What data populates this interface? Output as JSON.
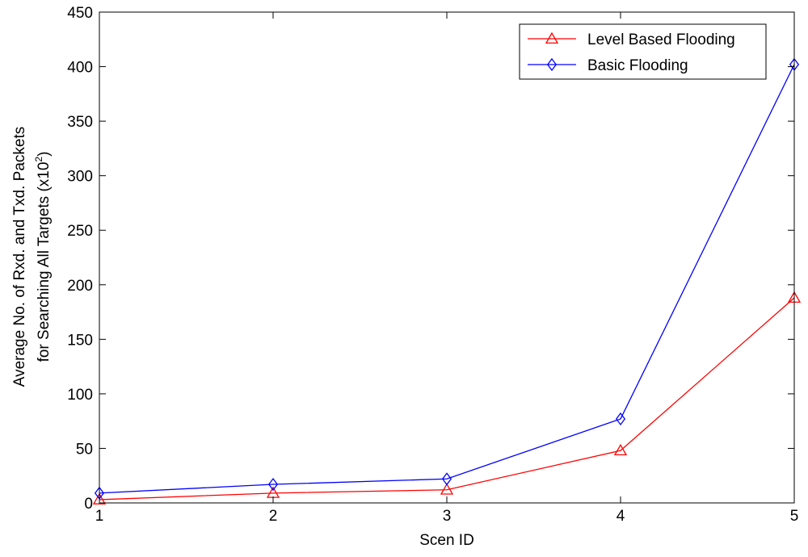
{
  "chart_data": {
    "type": "line",
    "title": "",
    "xlabel": "Scen ID",
    "ylabel": {
      "line1": "Average No. of Rxd. and Txd. Packets",
      "line2_prefix": "for Searching All Targets (x10",
      "line2_exp": "2",
      "line2_suffix": ")"
    },
    "x": [
      1,
      2,
      3,
      4,
      5
    ],
    "xlim": [
      1,
      5
    ],
    "ylim": [
      0,
      450
    ],
    "xticks": [
      "1",
      "2",
      "3",
      "4",
      "5"
    ],
    "yticks": [
      "0",
      "50",
      "100",
      "150",
      "200",
      "250",
      "300",
      "350",
      "400",
      "450"
    ],
    "grid": false,
    "legend_position": "top-right",
    "series": [
      {
        "name": "Level Based Flooding",
        "color": "#ff0000",
        "marker": "triangle",
        "values": [
          3,
          9,
          12,
          48,
          188
        ]
      },
      {
        "name": "Basic Flooding",
        "color": "#0000ff",
        "marker": "diamond",
        "values": [
          9,
          17,
          22,
          77,
          402
        ]
      }
    ]
  }
}
